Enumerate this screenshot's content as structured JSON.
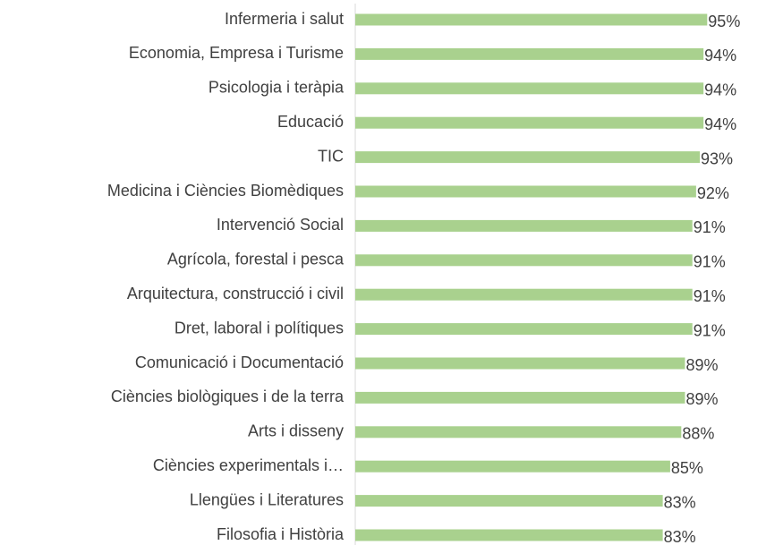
{
  "chart_data": {
    "type": "bar",
    "orientation": "horizontal",
    "categories": [
      "Infermeria i salut",
      "Economia, Empresa i Turisme",
      "Psicologia i teràpia",
      "Educació",
      "TIC",
      "Medicina i Ciències Biomèdiques",
      "Intervenció Social",
      "Agrícola, forestal i pesca",
      "Arquitectura, construcció i civil",
      "Dret, laboral i polítiques",
      "Comunicació i Documentació",
      "Ciències biològiques i de la terra",
      "Arts i disseny",
      "Ciències experimentals i…",
      "Llengües i Literatures",
      "Filosofia i Història"
    ],
    "values": [
      95,
      94,
      94,
      94,
      93,
      92,
      91,
      91,
      91,
      91,
      89,
      89,
      88,
      85,
      83,
      83
    ],
    "value_labels": [
      "95%",
      "94%",
      "94%",
      "94%",
      "93%",
      "92%",
      "91%",
      "91%",
      "91%",
      "91%",
      "89%",
      "89%",
      "88%",
      "85%",
      "83%",
      "83%"
    ],
    "color": "#a9d18e",
    "xlim": [
      0,
      100
    ]
  }
}
